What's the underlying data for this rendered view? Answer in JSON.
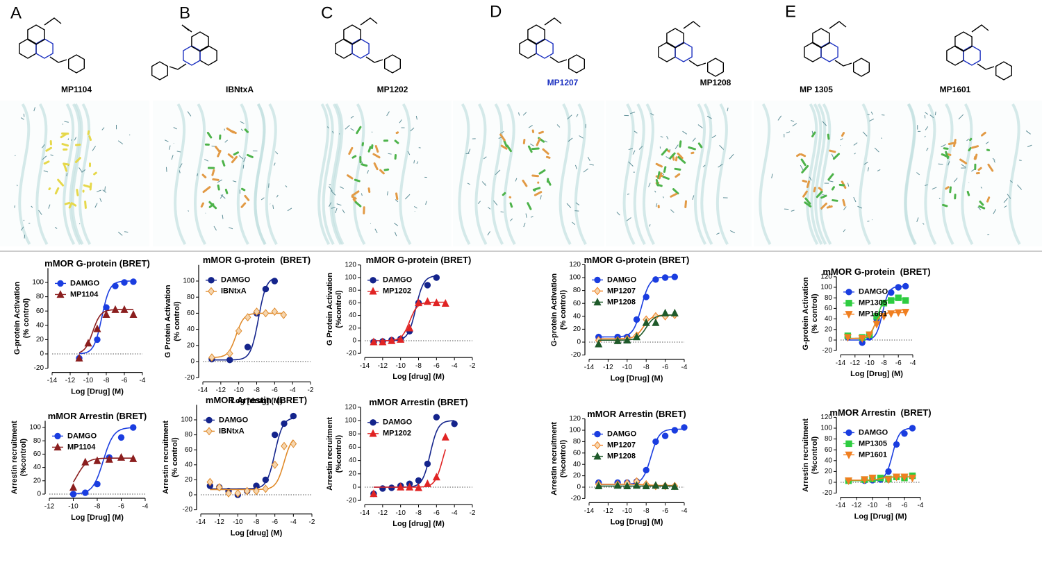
{
  "panel_letters": [
    "A",
    "B",
    "C",
    "D",
    "E"
  ],
  "compounds": [
    {
      "name": "MP1104",
      "color": "#000000"
    },
    {
      "name": "IBNtxA",
      "color": "#000000"
    },
    {
      "name": "MP1202",
      "color": "#000000"
    },
    {
      "name": "MP1207",
      "color": "#1a2fc0"
    },
    {
      "name": "MP1208",
      "color": "#000000"
    },
    {
      "name": "MP 1305",
      "color": "#000000"
    },
    {
      "name": "MP1601",
      "color": "#000000"
    }
  ],
  "chart_data": [
    {
      "type": "scatter",
      "title": "mMOR G-protein (BRET)",
      "ylabel": [
        "G-protein Activation",
        "(% control)"
      ],
      "xlabel": "Log [Drug] (M)",
      "xlim": [
        -14,
        -4
      ],
      "xticks": [
        -14,
        -12,
        -10,
        -8,
        -6,
        -4
      ],
      "ylim": [
        -20,
        120
      ],
      "yticks": [
        -20,
        0,
        20,
        40,
        60,
        80,
        100
      ],
      "series": [
        {
          "name": "DAMGO",
          "color": "#1a3de0",
          "marker": "circle",
          "x": [
            -11,
            -9,
            -8,
            -7,
            -6,
            -5
          ],
          "values": [
            -6,
            20,
            65,
            95,
            100,
            101
          ],
          "fit": {
            "bottom": 0,
            "top": 102,
            "logec50": -8.5
          }
        },
        {
          "name": "MP1104",
          "color": "#8b1e1e",
          "marker": "triangle",
          "x": [
            -11,
            -10,
            -9,
            -8,
            -7,
            -6,
            -5
          ],
          "values": [
            -6,
            15,
            35,
            55,
            62,
            62,
            55
          ],
          "fit": {
            "bottom": 0,
            "top": 62,
            "logec50": -9.5
          }
        }
      ]
    },
    {
      "type": "scatter",
      "title": "mMOR G-protein  (BRET)",
      "ylabel": [
        "G Protein Activation",
        "(% control)"
      ],
      "xlabel": "Log [drug] (M)",
      "xlim": [
        -14,
        -2
      ],
      "xticks": [
        -14,
        -12,
        -10,
        -8,
        -6,
        -4,
        -2
      ],
      "ylim": [
        -20,
        120
      ],
      "yticks": [
        -20,
        0,
        20,
        40,
        60,
        80,
        100
      ],
      "series": [
        {
          "name": "DAMGO",
          "color": "#14248c",
          "marker": "circle",
          "x": [
            -13,
            -11,
            -9,
            -8,
            -7,
            -6
          ],
          "values": [
            3,
            2,
            18,
            60,
            90,
            100
          ],
          "fit": {
            "bottom": 2,
            "top": 105,
            "logec50": -7.8
          }
        },
        {
          "name": "IBNtxA",
          "color": "#e08a2a",
          "marker": "diamond",
          "x": [
            -13,
            -11,
            -10,
            -9,
            -8,
            -7,
            -6,
            -5
          ],
          "values": [
            5,
            10,
            38,
            55,
            62,
            60,
            62,
            58
          ],
          "fit": {
            "bottom": 5,
            "top": 60,
            "logec50": -10.3
          }
        }
      ]
    },
    {
      "type": "scatter",
      "title": "mMOR G-protein (BRET)",
      "ylabel": [
        "G Protein Activation",
        "(%control)"
      ],
      "xlabel": "Log [drug] (M)",
      "xlim": [
        -14,
        -2
      ],
      "xticks": [
        -14,
        -12,
        -10,
        -8,
        -6,
        -4,
        -2
      ],
      "ylim": [
        -20,
        120
      ],
      "yticks": [
        -20,
        0,
        20,
        40,
        60,
        80,
        100,
        120
      ],
      "series": [
        {
          "name": "DAMGO",
          "color": "#14248c",
          "marker": "circle",
          "x": [
            -13,
            -12,
            -11,
            -10,
            -9,
            -8,
            -7,
            -6
          ],
          "values": [
            -2,
            -1,
            1,
            3,
            15,
            60,
            88,
            100
          ],
          "fit": {
            "bottom": 0,
            "top": 103,
            "logec50": -8.3
          }
        },
        {
          "name": "MP1202",
          "color": "#e02424",
          "marker": "triangle",
          "x": [
            -13,
            -12,
            -11,
            -10,
            -9,
            -8,
            -7,
            -6,
            -5
          ],
          "values": [
            -2,
            -2,
            0,
            2,
            20,
            60,
            62,
            60,
            59
          ],
          "fit": {
            "bottom": 0,
            "top": 61,
            "logec50": -9.0
          }
        }
      ]
    },
    {
      "type": "scatter",
      "title": "mMOR G-protein (BRET)",
      "ylabel": [
        "G-protein Activation",
        "(% control)"
      ],
      "xlabel": "Log [Drug] (M)",
      "xlim": [
        -14,
        -4
      ],
      "xticks": [
        -14,
        -12,
        -10,
        -8,
        -6,
        -4
      ],
      "ylim": [
        -20,
        120
      ],
      "yticks": [
        -20,
        0,
        20,
        40,
        60,
        80,
        100,
        120
      ],
      "series": [
        {
          "name": "DAMGO",
          "color": "#1a3de0",
          "marker": "circle",
          "x": [
            -13,
            -11,
            -10,
            -9,
            -8,
            -7,
            -6,
            -5
          ],
          "values": [
            8,
            8,
            8,
            35,
            70,
            97,
            100,
            101
          ],
          "fit": {
            "bottom": 8,
            "top": 101,
            "logec50": -8.5
          }
        },
        {
          "name": "MP1207",
          "color": "#f08020",
          "marker": "diamond",
          "x": [
            -13,
            -11,
            -10,
            -9,
            -8,
            -7,
            -6,
            -5
          ],
          "values": [
            3,
            3,
            5,
            10,
            35,
            40,
            40,
            42
          ],
          "fit": {
            "bottom": 5,
            "top": 42,
            "logec50": -8.3
          }
        },
        {
          "name": "MP1208",
          "color": "#1e5a2a",
          "marker": "triangle",
          "x": [
            -13,
            -11,
            -10,
            -9,
            -8,
            -7,
            -6,
            -5
          ],
          "values": [
            -3,
            2,
            3,
            8,
            30,
            30,
            45,
            45
          ],
          "fit": {
            "bottom": 3,
            "top": 42,
            "logec50": -8.0
          }
        }
      ]
    },
    {
      "type": "scatter",
      "title": "mMOR G-protein  (BRET)",
      "ylabel": [
        "G-protein Activation",
        "(% control)"
      ],
      "xlabel": "Log [Drug] (M)",
      "xlim": [
        -14,
        -4
      ],
      "xticks": [
        -14,
        -12,
        -10,
        -8,
        -6,
        -4
      ],
      "ylim": [
        -20,
        120
      ],
      "yticks": [
        -20,
        0,
        20,
        40,
        60,
        80,
        100,
        120
      ],
      "series": [
        {
          "name": "DAMGO",
          "color": "#1a3de0",
          "marker": "circle",
          "x": [
            -13,
            -11,
            -10,
            -9,
            -8,
            -7,
            -6,
            -5
          ],
          "values": [
            5,
            -5,
            5,
            40,
            70,
            90,
            100,
            102
          ],
          "fit": {
            "bottom": 0,
            "top": 102,
            "logec50": -8.2
          }
        },
        {
          "name": "MP1305",
          "color": "#2ecc40",
          "marker": "square",
          "x": [
            -13,
            -11,
            -10,
            -9,
            -8,
            -7,
            -6,
            -5
          ],
          "values": [
            8,
            5,
            10,
            45,
            70,
            75,
            80,
            75
          ],
          "fit": {
            "bottom": 3,
            "top": 78,
            "logec50": -9.0
          }
        },
        {
          "name": "MP1601",
          "color": "#f07f20",
          "marker": "triangle-down",
          "x": [
            -13,
            -11,
            -10,
            -9,
            -8,
            -7,
            -6,
            -5
          ],
          "values": [
            5,
            3,
            10,
            30,
            45,
            50,
            52,
            53
          ],
          "fit": {
            "bottom": 3,
            "top": 52,
            "logec50": -9.3
          }
        }
      ]
    },
    {
      "type": "scatter",
      "title": "mMOR Arrestin (BRET)",
      "ylabel": [
        "Arrestin recruitment",
        "(%control)"
      ],
      "xlabel": "Log [Drug] (M)",
      "xlim": [
        -12,
        -4
      ],
      "xticks": [
        -12,
        -10,
        -8,
        -6,
        -4
      ],
      "ylim": [
        0,
        110
      ],
      "yticks": [
        0,
        20,
        40,
        60,
        80,
        100
      ],
      "series": [
        {
          "name": "DAMGO",
          "color": "#1a3de0",
          "marker": "circle",
          "x": [
            -10,
            -9,
            -8,
            -7,
            -6,
            -5
          ],
          "values": [
            0,
            2,
            15,
            55,
            85,
            100
          ],
          "fit": {
            "bottom": 0,
            "top": 100,
            "logec50": -7.5
          }
        },
        {
          "name": "MP1104",
          "color": "#8b1e1e",
          "marker": "triangle",
          "x": [
            -10,
            -9,
            -8,
            -7,
            -6,
            -5
          ],
          "values": [
            10,
            48,
            50,
            52,
            55,
            53
          ],
          "fit": {
            "bottom": 0,
            "top": 54,
            "logec50": -9.7
          }
        }
      ]
    },
    {
      "type": "scatter",
      "title": "mMOR Arrestin  (BRET)",
      "ylabel": [
        "Arrestin recruitment",
        "(% control)"
      ],
      "xlabel": "Log [drug] (M)",
      "xlim": [
        -14,
        -2
      ],
      "xticks": [
        -14,
        -12,
        -10,
        -8,
        -6,
        -4,
        -2
      ],
      "ylim": [
        -20,
        120
      ],
      "yticks": [
        -20,
        0,
        20,
        40,
        60,
        80,
        100
      ],
      "series": [
        {
          "name": "DAMGO",
          "color": "#14248c",
          "marker": "circle",
          "x": [
            -13,
            -12,
            -11,
            -10,
            -9,
            -8,
            -7,
            -6,
            -5,
            -4
          ],
          "values": [
            12,
            10,
            5,
            0,
            5,
            12,
            20,
            80,
            95,
            105
          ],
          "fit": {
            "bottom": 8,
            "top": 103,
            "logec50": -6.0
          }
        },
        {
          "name": "IBNtxA",
          "color": "#e08a2a",
          "marker": "diamond",
          "x": [
            -13,
            -12,
            -11,
            -10,
            -9,
            -8,
            -7,
            -6,
            -5,
            -4
          ],
          "values": [
            17,
            10,
            2,
            2,
            5,
            5,
            8,
            40,
            65,
            68
          ],
          "fit": {
            "bottom": 7,
            "top": 80,
            "logec50": -5.0
          }
        }
      ]
    },
    {
      "type": "scatter",
      "title": "mMOR Arrestin (BRET)",
      "ylabel": [
        "Arrestin recruitment",
        "(%control)"
      ],
      "xlabel": "Log [drug] (M)",
      "xlim": [
        -14,
        -2
      ],
      "xticks": [
        -14,
        -12,
        -10,
        -8,
        -6,
        -4,
        -2
      ],
      "ylim": [
        -20,
        120
      ],
      "yticks": [
        -20,
        0,
        20,
        40,
        60,
        80,
        100,
        120
      ],
      "series": [
        {
          "name": "DAMGO",
          "color": "#14248c",
          "marker": "circle",
          "x": [
            -13,
            -12,
            -11,
            -10,
            -9,
            -8,
            -7,
            -6,
            -4
          ],
          "values": [
            -10,
            -2,
            -1,
            2,
            5,
            10,
            35,
            105,
            95
          ],
          "fit": {
            "bottom": 0,
            "top": 100,
            "logec50": -6.7
          }
        },
        {
          "name": "MP1202",
          "color": "#e02424",
          "marker": "triangle",
          "x": [
            -13,
            -10,
            -9,
            -8,
            -7,
            -6,
            -5
          ],
          "values": [
            -10,
            0,
            0,
            -1,
            5,
            15,
            75
          ],
          "fit": {
            "bottom": 0,
            "top": 85,
            "logec50": -5.3
          }
        }
      ]
    },
    {
      "type": "scatter",
      "title": "mMOR Arrestin (BRET)",
      "ylabel": [
        "Arrestin recruitment",
        "(%control)"
      ],
      "xlabel": "Log [Drug] (M)",
      "xlim": [
        -14,
        -4
      ],
      "xticks": [
        -14,
        -12,
        -10,
        -8,
        -6,
        -4
      ],
      "ylim": [
        -20,
        120
      ],
      "yticks": [
        -20,
        0,
        20,
        40,
        60,
        80,
        100,
        120
      ],
      "series": [
        {
          "name": "DAMGO",
          "color": "#1a3de0",
          "marker": "circle",
          "x": [
            -13,
            -11,
            -10,
            -9,
            -8,
            -7,
            -6,
            -5,
            -4
          ],
          "values": [
            8,
            8,
            8,
            10,
            30,
            80,
            90,
            100,
            105
          ],
          "fit": {
            "bottom": 5,
            "top": 102,
            "logec50": -7.5
          }
        },
        {
          "name": "MP1207",
          "color": "#f08020",
          "marker": "diamond",
          "x": [
            -13,
            -11,
            -10,
            -9,
            -8,
            -7,
            -6,
            -5
          ],
          "values": [
            5,
            5,
            7,
            10,
            5,
            2,
            2,
            2
          ],
          "fit": {
            "bottom": 5,
            "top": 3,
            "logec50": -8
          }
        },
        {
          "name": "MP1208",
          "color": "#1e5a2a",
          "marker": "triangle",
          "x": [
            -13,
            -11,
            -10,
            -9,
            -8,
            -7,
            -6,
            -5
          ],
          "values": [
            2,
            3,
            2,
            3,
            2,
            3,
            2,
            1
          ],
          "fit": {
            "bottom": 2,
            "top": 2,
            "logec50": -8
          }
        }
      ]
    },
    {
      "type": "scatter",
      "title": "mMOR Arrestin  (BRET)",
      "ylabel": [
        "Arrestin recruitment",
        "(%control)"
      ],
      "xlabel": "Log [Drug] (M)",
      "xlim": [
        -14,
        -4
      ],
      "xticks": [
        -14,
        -12,
        -10,
        -8,
        -6,
        -4
      ],
      "ylim": [
        -20,
        120
      ],
      "yticks": [
        -20,
        0,
        20,
        40,
        60,
        80,
        100,
        120
      ],
      "series": [
        {
          "name": "DAMGO",
          "color": "#1a3de0",
          "marker": "circle",
          "x": [
            -13,
            -11,
            -10,
            -9,
            -8,
            -7,
            -6,
            -5
          ],
          "values": [
            3,
            3,
            4,
            5,
            20,
            70,
            90,
            100
          ],
          "fit": {
            "bottom": 3,
            "top": 100,
            "logec50": -7.5
          }
        },
        {
          "name": "MP1305",
          "color": "#2ecc40",
          "marker": "square",
          "x": [
            -13,
            -11,
            -10,
            -9,
            -8,
            -7,
            -6,
            -5
          ],
          "values": [
            3,
            5,
            6,
            8,
            6,
            10,
            8,
            12
          ],
          "fit": {
            "bottom": 3,
            "top": 10,
            "logec50": -9
          }
        },
        {
          "name": "MP1601",
          "color": "#f07f20",
          "marker": "triangle-down",
          "x": [
            -13,
            -11,
            -10,
            -8,
            -7,
            -6,
            -5
          ],
          "values": [
            3,
            5,
            8,
            5,
            10,
            10,
            8
          ],
          "fit": {
            "bottom": 4,
            "top": 10,
            "logec50": -9
          }
        }
      ]
    }
  ]
}
